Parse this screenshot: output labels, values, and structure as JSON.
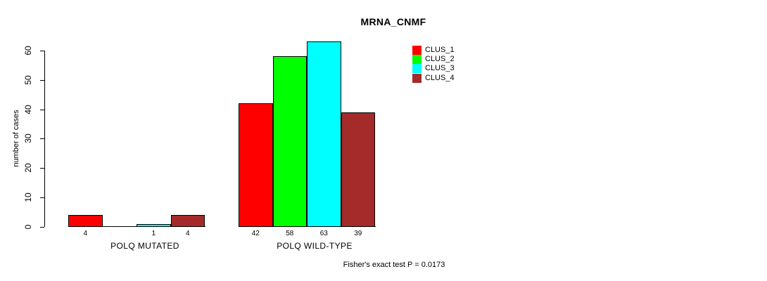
{
  "chart_data": {
    "type": "bar",
    "title": "MRNA_CNMF",
    "ylabel": "number of cases",
    "xlabel": "",
    "categories": [
      "POLQ MUTATED",
      "POLQ WILD-TYPE"
    ],
    "series": [
      {
        "name": "CLUS_1",
        "color": "#ff0000",
        "values": [
          4,
          42
        ]
      },
      {
        "name": "CLUS_2",
        "color": "#00ff00",
        "values": [
          0,
          58
        ]
      },
      {
        "name": "CLUS_3",
        "color": "#00ffff",
        "values": [
          1,
          63
        ]
      },
      {
        "name": "CLUS_4",
        "color": "#a52a2a",
        "values": [
          4,
          39
        ]
      }
    ],
    "bar_labels": [
      [
        "4",
        "",
        "1",
        "4"
      ],
      [
        "42",
        "58",
        "63",
        "39"
      ]
    ],
    "y_ticks": [
      0,
      10,
      20,
      30,
      40,
      50,
      60
    ],
    "ylim": [
      0,
      60
    ],
    "grid": false,
    "legend_position": "top-right",
    "annotation": "Fisher's exact test P = 0.0173"
  }
}
